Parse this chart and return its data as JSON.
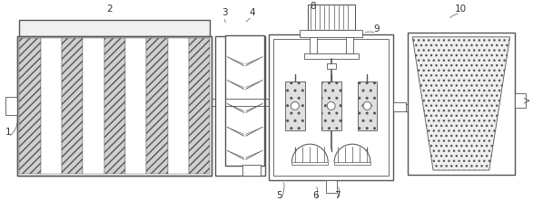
{
  "bg_color": "#ffffff",
  "lc": "#555555",
  "fig_width": 5.98,
  "fig_height": 2.22,
  "dpi": 100,
  "label_fs": 7.5,
  "label_color": "#333333"
}
